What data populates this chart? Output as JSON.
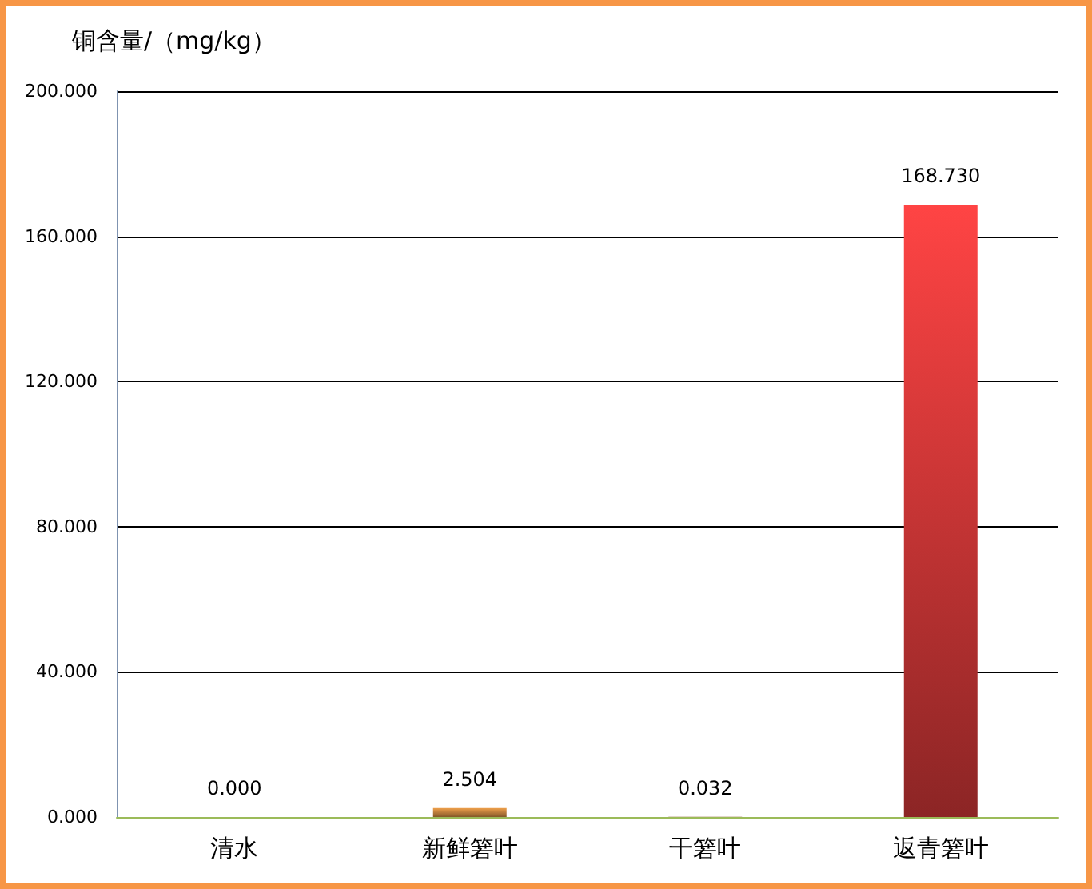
{
  "chart_data": {
    "type": "bar",
    "ylabel": "铜含量/（mg/kg）",
    "categories": [
      "清水",
      "新鲜箬叶",
      "干箬叶",
      "返青箬叶"
    ],
    "values": [
      0,
      2.504,
      0.032,
      168.73
    ],
    "colors": [
      "#9bbb59",
      "#f0a04b",
      "#8b5a2b",
      "#ff4444"
    ],
    "value_labels": [
      "0.000",
      "2.504",
      "0.032",
      "168.730"
    ],
    "ylim": [
      0,
      200
    ],
    "yticks": [
      {
        "value": 0,
        "label": "0.000"
      },
      {
        "value": 40,
        "label": "40.000"
      },
      {
        "value": 80,
        "label": "80.000"
      },
      {
        "value": 120,
        "label": "120.000"
      },
      {
        "value": 160,
        "label": "160.000"
      },
      {
        "value": 200,
        "label": "200.000"
      }
    ],
    "grid": "y"
  }
}
